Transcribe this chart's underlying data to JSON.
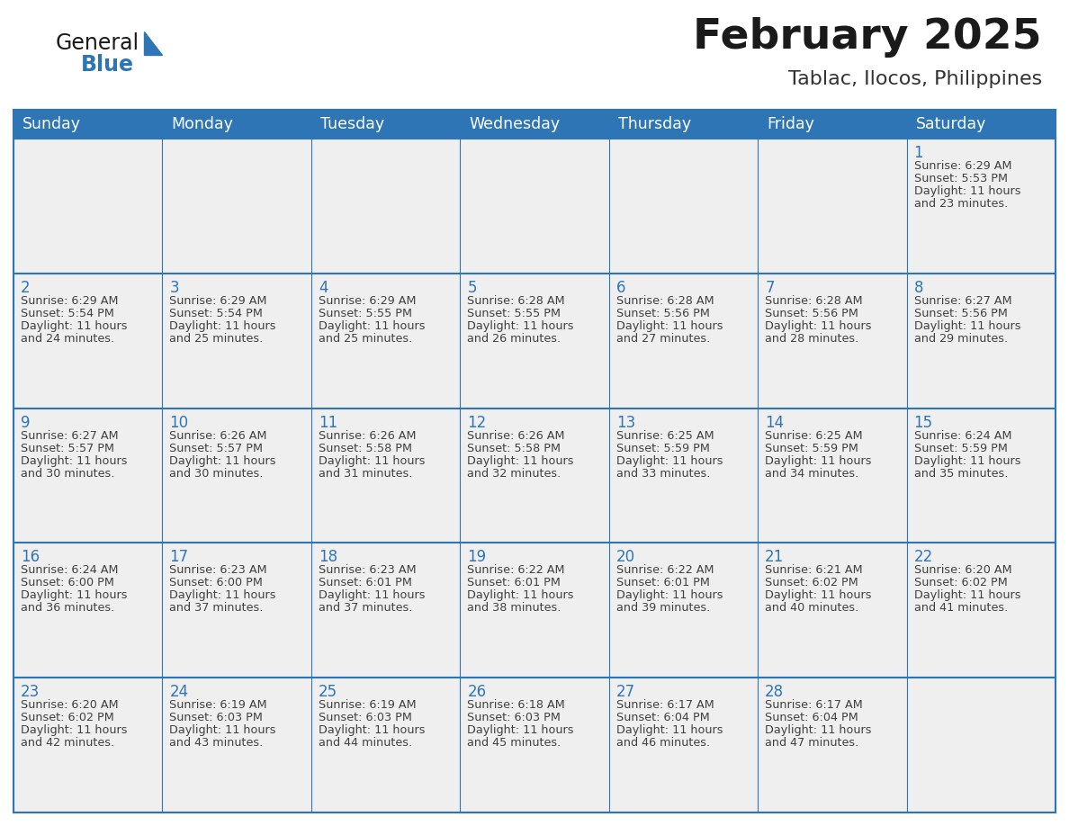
{
  "title": "February 2025",
  "subtitle": "Tablac, Ilocos, Philippines",
  "days_of_week": [
    "Sunday",
    "Monday",
    "Tuesday",
    "Wednesday",
    "Thursday",
    "Friday",
    "Saturday"
  ],
  "header_bg": "#2E75B6",
  "header_text": "#FFFFFF",
  "cell_bg_odd": "#EFEFEF",
  "cell_bg_even": "#EFEFEF",
  "border_color": "#2E75B6",
  "day_number_color": "#2E75B6",
  "text_color": "#404040",
  "calendar_data": [
    [
      null,
      null,
      null,
      null,
      null,
      null,
      {
        "day": 1,
        "sunrise": "6:29 AM",
        "sunset": "5:53 PM",
        "daylight_l1": "Daylight: 11 hours",
        "daylight_l2": "and 23 minutes."
      }
    ],
    [
      {
        "day": 2,
        "sunrise": "6:29 AM",
        "sunset": "5:54 PM",
        "daylight_l1": "Daylight: 11 hours",
        "daylight_l2": "and 24 minutes."
      },
      {
        "day": 3,
        "sunrise": "6:29 AM",
        "sunset": "5:54 PM",
        "daylight_l1": "Daylight: 11 hours",
        "daylight_l2": "and 25 minutes."
      },
      {
        "day": 4,
        "sunrise": "6:29 AM",
        "sunset": "5:55 PM",
        "daylight_l1": "Daylight: 11 hours",
        "daylight_l2": "and 25 minutes."
      },
      {
        "day": 5,
        "sunrise": "6:28 AM",
        "sunset": "5:55 PM",
        "daylight_l1": "Daylight: 11 hours",
        "daylight_l2": "and 26 minutes."
      },
      {
        "day": 6,
        "sunrise": "6:28 AM",
        "sunset": "5:56 PM",
        "daylight_l1": "Daylight: 11 hours",
        "daylight_l2": "and 27 minutes."
      },
      {
        "day": 7,
        "sunrise": "6:28 AM",
        "sunset": "5:56 PM",
        "daylight_l1": "Daylight: 11 hours",
        "daylight_l2": "and 28 minutes."
      },
      {
        "day": 8,
        "sunrise": "6:27 AM",
        "sunset": "5:56 PM",
        "daylight_l1": "Daylight: 11 hours",
        "daylight_l2": "and 29 minutes."
      }
    ],
    [
      {
        "day": 9,
        "sunrise": "6:27 AM",
        "sunset": "5:57 PM",
        "daylight_l1": "Daylight: 11 hours",
        "daylight_l2": "and 30 minutes."
      },
      {
        "day": 10,
        "sunrise": "6:26 AM",
        "sunset": "5:57 PM",
        "daylight_l1": "Daylight: 11 hours",
        "daylight_l2": "and 30 minutes."
      },
      {
        "day": 11,
        "sunrise": "6:26 AM",
        "sunset": "5:58 PM",
        "daylight_l1": "Daylight: 11 hours",
        "daylight_l2": "and 31 minutes."
      },
      {
        "day": 12,
        "sunrise": "6:26 AM",
        "sunset": "5:58 PM",
        "daylight_l1": "Daylight: 11 hours",
        "daylight_l2": "and 32 minutes."
      },
      {
        "day": 13,
        "sunrise": "6:25 AM",
        "sunset": "5:59 PM",
        "daylight_l1": "Daylight: 11 hours",
        "daylight_l2": "and 33 minutes."
      },
      {
        "day": 14,
        "sunrise": "6:25 AM",
        "sunset": "5:59 PM",
        "daylight_l1": "Daylight: 11 hours",
        "daylight_l2": "and 34 minutes."
      },
      {
        "day": 15,
        "sunrise": "6:24 AM",
        "sunset": "5:59 PM",
        "daylight_l1": "Daylight: 11 hours",
        "daylight_l2": "and 35 minutes."
      }
    ],
    [
      {
        "day": 16,
        "sunrise": "6:24 AM",
        "sunset": "6:00 PM",
        "daylight_l1": "Daylight: 11 hours",
        "daylight_l2": "and 36 minutes."
      },
      {
        "day": 17,
        "sunrise": "6:23 AM",
        "sunset": "6:00 PM",
        "daylight_l1": "Daylight: 11 hours",
        "daylight_l2": "and 37 minutes."
      },
      {
        "day": 18,
        "sunrise": "6:23 AM",
        "sunset": "6:01 PM",
        "daylight_l1": "Daylight: 11 hours",
        "daylight_l2": "and 37 minutes."
      },
      {
        "day": 19,
        "sunrise": "6:22 AM",
        "sunset": "6:01 PM",
        "daylight_l1": "Daylight: 11 hours",
        "daylight_l2": "and 38 minutes."
      },
      {
        "day": 20,
        "sunrise": "6:22 AM",
        "sunset": "6:01 PM",
        "daylight_l1": "Daylight: 11 hours",
        "daylight_l2": "and 39 minutes."
      },
      {
        "day": 21,
        "sunrise": "6:21 AM",
        "sunset": "6:02 PM",
        "daylight_l1": "Daylight: 11 hours",
        "daylight_l2": "and 40 minutes."
      },
      {
        "day": 22,
        "sunrise": "6:20 AM",
        "sunset": "6:02 PM",
        "daylight_l1": "Daylight: 11 hours",
        "daylight_l2": "and 41 minutes."
      }
    ],
    [
      {
        "day": 23,
        "sunrise": "6:20 AM",
        "sunset": "6:02 PM",
        "daylight_l1": "Daylight: 11 hours",
        "daylight_l2": "and 42 minutes."
      },
      {
        "day": 24,
        "sunrise": "6:19 AM",
        "sunset": "6:03 PM",
        "daylight_l1": "Daylight: 11 hours",
        "daylight_l2": "and 43 minutes."
      },
      {
        "day": 25,
        "sunrise": "6:19 AM",
        "sunset": "6:03 PM",
        "daylight_l1": "Daylight: 11 hours",
        "daylight_l2": "and 44 minutes."
      },
      {
        "day": 26,
        "sunrise": "6:18 AM",
        "sunset": "6:03 PM",
        "daylight_l1": "Daylight: 11 hours",
        "daylight_l2": "and 45 minutes."
      },
      {
        "day": 27,
        "sunrise": "6:17 AM",
        "sunset": "6:04 PM",
        "daylight_l1": "Daylight: 11 hours",
        "daylight_l2": "and 46 minutes."
      },
      {
        "day": 28,
        "sunrise": "6:17 AM",
        "sunset": "6:04 PM",
        "daylight_l1": "Daylight: 11 hours",
        "daylight_l2": "and 47 minutes."
      },
      null
    ]
  ],
  "logo_general_color": "#1a1a1a",
  "logo_blue_color": "#2E75B6",
  "fig_width": 11.88,
  "fig_height": 9.18,
  "dpi": 100
}
